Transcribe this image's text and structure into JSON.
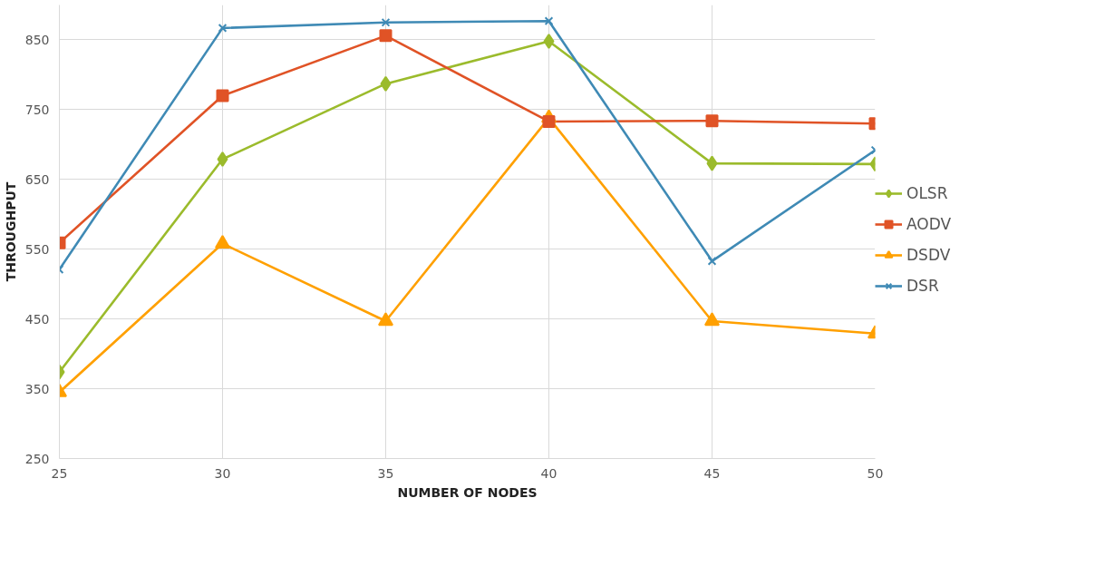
{
  "chart_data": {
    "type": "line",
    "xlabel": "NUMBER OF NODES",
    "ylabel": "THROUGHPUT",
    "x": [
      25,
      30,
      35,
      40,
      45,
      50
    ],
    "xlim": [
      25,
      50
    ],
    "xticks": [
      25,
      30,
      35,
      40,
      45,
      50
    ],
    "ylim": [
      250,
      900
    ],
    "yticks": [
      250,
      350,
      450,
      550,
      650,
      750,
      850
    ],
    "grid": true,
    "legend": "right",
    "line_style": "solid",
    "series": [
      {
        "name": "OLSR",
        "color": "#9bbb2c",
        "marker": "diamond",
        "values": [
          374,
          679,
          787,
          848,
          673,
          672
        ]
      },
      {
        "name": "AODV",
        "color": "#e05326",
        "marker": "square",
        "values": [
          559,
          770,
          856,
          733,
          734,
          730
        ]
      },
      {
        "name": "DSDV",
        "color": "#ffa000",
        "marker": "triangle",
        "values": [
          345,
          558,
          447,
          738,
          447,
          429
        ]
      },
      {
        "name": "DSR",
        "color": "#3f8ab5",
        "marker": "cross",
        "values": [
          521,
          867,
          875,
          877,
          533,
          692
        ]
      }
    ]
  }
}
